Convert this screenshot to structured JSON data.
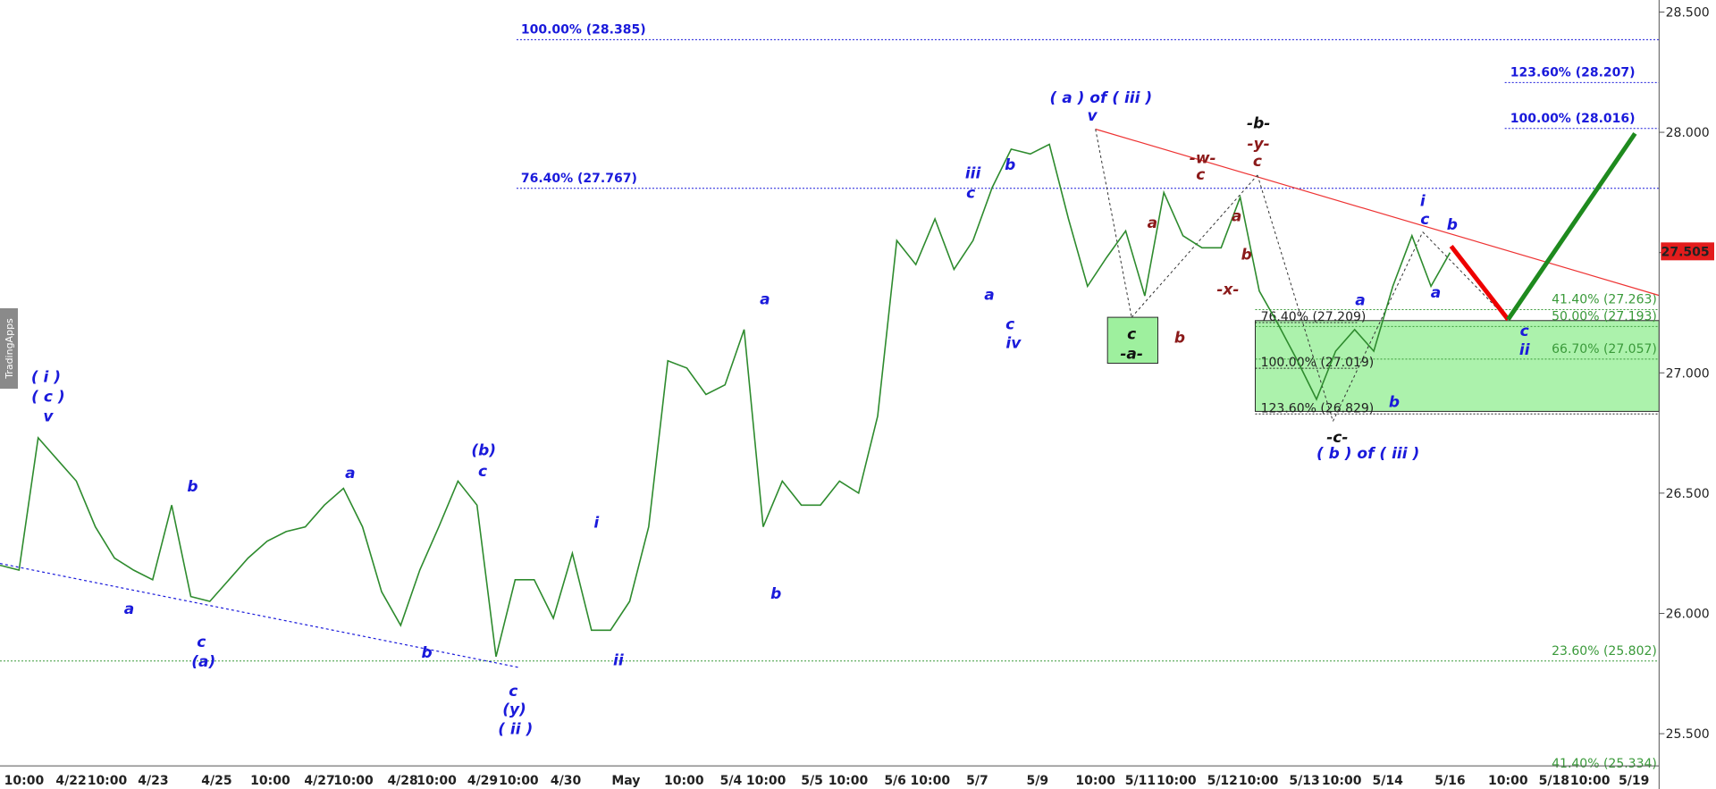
{
  "chart_data": {
    "type": "line",
    "watermark": "TradingApps",
    "color": "#2e8b2e",
    "values": [
      26.2,
      26.18,
      26.73,
      26.64,
      26.55,
      26.36,
      26.23,
      26.18,
      26.14,
      26.45,
      26.07,
      26.05,
      26.14,
      26.23,
      26.3,
      26.34,
      26.36,
      26.45,
      26.52,
      26.36,
      26.09,
      25.95,
      26.18,
      26.36,
      26.55,
      26.45,
      25.82,
      26.14,
      26.14,
      25.98,
      26.25,
      25.93,
      25.93,
      26.05,
      26.36,
      27.05,
      27.02,
      26.91,
      26.95,
      27.18,
      26.36,
      26.55,
      26.45,
      26.45,
      26.55,
      26.5,
      26.82,
      27.55,
      27.45,
      27.64,
      27.43,
      27.55,
      27.77,
      27.93,
      27.91,
      27.95,
      27.64,
      27.36,
      27.48,
      27.59,
      27.32,
      27.75,
      27.57,
      27.52,
      27.52,
      27.73,
      27.34,
      27.2,
      27.05,
      26.89,
      27.09,
      27.18,
      27.09,
      27.36,
      27.57,
      27.36,
      27.5
    ],
    "last_price": 27.505,
    "ylim": [
      25.27,
      28.55
    ],
    "yticks": [
      {
        "value": 25.5,
        "label": "25.500"
      },
      {
        "value": 26,
        "label": "26.000"
      },
      {
        "value": 26.5,
        "label": "26.500"
      },
      {
        "value": 27,
        "label": "27.000"
      },
      {
        "value": 27.5,
        "label": "27.500"
      },
      {
        "value": 28,
        "label": "28.000"
      },
      {
        "value": 28.5,
        "label": "28.500"
      }
    ],
    "x_axis_labels": [
      "10:00",
      "4/22",
      "10:00",
      "4/23",
      "4/25",
      "10:00",
      "4/27",
      "10:00",
      "4/28",
      "10:00",
      "4/29",
      "10:00",
      "4/30",
      "May",
      "10:00",
      "5/4",
      "10:00",
      "5/5",
      "10:00",
      "5/6",
      "10:00",
      "5/7",
      "5/9",
      "10:00",
      "5/11",
      "10:00",
      "5/12",
      "10:00",
      "5/13",
      "10:00",
      "5/14",
      "5/16",
      "10:00",
      "5/18",
      "10:00",
      "5/19"
    ],
    "fib_levels": [
      {
        "value": 28.385,
        "label": "100.00% (28.385)",
        "color": "#1a1adb"
      },
      {
        "value": 27.767,
        "label": "76.40% (27.767)",
        "color": "#1a1adb"
      },
      {
        "value": 28.207,
        "label": "123.60% (28.207)",
        "color": "#1a1adb"
      },
      {
        "value": 28.016,
        "label": "100.00% (28.016)",
        "color": "#1a1adb"
      },
      {
        "value": 27.263,
        "label": "41.40% (27.263)",
        "color": "#3a9a3a"
      },
      {
        "value": 27.193,
        "label": "50.00% (27.193)",
        "color": "#3a9a3a"
      },
      {
        "value": 27.057,
        "label": "66.70% (27.057)",
        "color": "#3a9a3a"
      },
      {
        "value": 25.802,
        "label": "23.60% (25.802)",
        "color": "#3a9a3a"
      },
      {
        "value": 25.334,
        "label": "41.40% (25.334)",
        "color": "#3a9a3a"
      },
      {
        "value": 27.209,
        "label": "76.40% (27.209)",
        "color": "#222222"
      },
      {
        "value": 27.019,
        "label": "100.00% (27.019)",
        "color": "#222222"
      },
      {
        "value": 26.829,
        "label": "123.60% (26.829)",
        "color": "#222222"
      }
    ],
    "annotations": [
      {
        "text": "( i )",
        "color": "#1a1adb"
      },
      {
        "text": "( c )",
        "color": "#1a1adb"
      },
      {
        "text": "v",
        "color": "#1a1adb"
      },
      {
        "text": "a",
        "color": "#1a1adb"
      },
      {
        "text": "b",
        "color": "#1a1adb"
      },
      {
        "text": "c",
        "color": "#1a1adb"
      },
      {
        "text": "(a)",
        "color": "#1a1adb"
      },
      {
        "text": "a",
        "color": "#1a1adb"
      },
      {
        "text": "b",
        "color": "#1a1adb"
      },
      {
        "text": "(b)",
        "color": "#1a1adb"
      },
      {
        "text": "c",
        "color": "#1a1adb"
      },
      {
        "text": "c",
        "color": "#1a1adb"
      },
      {
        "text": "(y)",
        "color": "#1a1adb"
      },
      {
        "text": "( ii )",
        "color": "#1a1adb"
      },
      {
        "text": "i",
        "color": "#1a1adb"
      },
      {
        "text": "ii",
        "color": "#1a1adb"
      },
      {
        "text": "a",
        "color": "#1a1adb"
      },
      {
        "text": "b",
        "color": "#1a1adb"
      },
      {
        "text": "iii",
        "color": "#1a1adb"
      },
      {
        "text": "c",
        "color": "#1a1adb"
      },
      {
        "text": "b",
        "color": "#1a1adb"
      },
      {
        "text": "a",
        "color": "#1a1adb"
      },
      {
        "text": "c",
        "color": "#1a1adb"
      },
      {
        "text": "iv",
        "color": "#1a1adb"
      },
      {
        "text": "( a ) of ( iii )",
        "color": "#1a1adb"
      },
      {
        "text": "v",
        "color": "#1a1adb"
      },
      {
        "text": "c",
        "color": "#111111"
      },
      {
        "text": "-a-",
        "color": "#111111"
      },
      {
        "text": "a",
        "color": "#8b1a1a"
      },
      {
        "text": "b",
        "color": "#8b1a1a"
      },
      {
        "text": "-w-",
        "color": "#8b1a1a"
      },
      {
        "text": "c",
        "color": "#8b1a1a"
      },
      {
        "text": "a",
        "color": "#8b1a1a"
      },
      {
        "text": "b",
        "color": "#8b1a1a"
      },
      {
        "text": "-x-",
        "color": "#8b1a1a"
      },
      {
        "text": "-b-",
        "color": "#111111"
      },
      {
        "text": "-y-",
        "color": "#8b1a1a"
      },
      {
        "text": "c",
        "color": "#8b1a1a"
      },
      {
        "text": "i",
        "color": "#1a1adb"
      },
      {
        "text": "c",
        "color": "#1a1adb"
      },
      {
        "text": "b",
        "color": "#1a1adb"
      },
      {
        "text": "a",
        "color": "#1a1adb"
      },
      {
        "text": "a",
        "color": "#1a1adb"
      },
      {
        "text": "b",
        "color": "#1a1adb"
      },
      {
        "text": "c",
        "color": "#1a1adb"
      },
      {
        "text": "ii",
        "color": "#1a1adb"
      },
      {
        "text": "-c-",
        "color": "#111111"
      },
      {
        "text": "( b ) of ( iii )",
        "color": "#1a1adb"
      }
    ]
  }
}
